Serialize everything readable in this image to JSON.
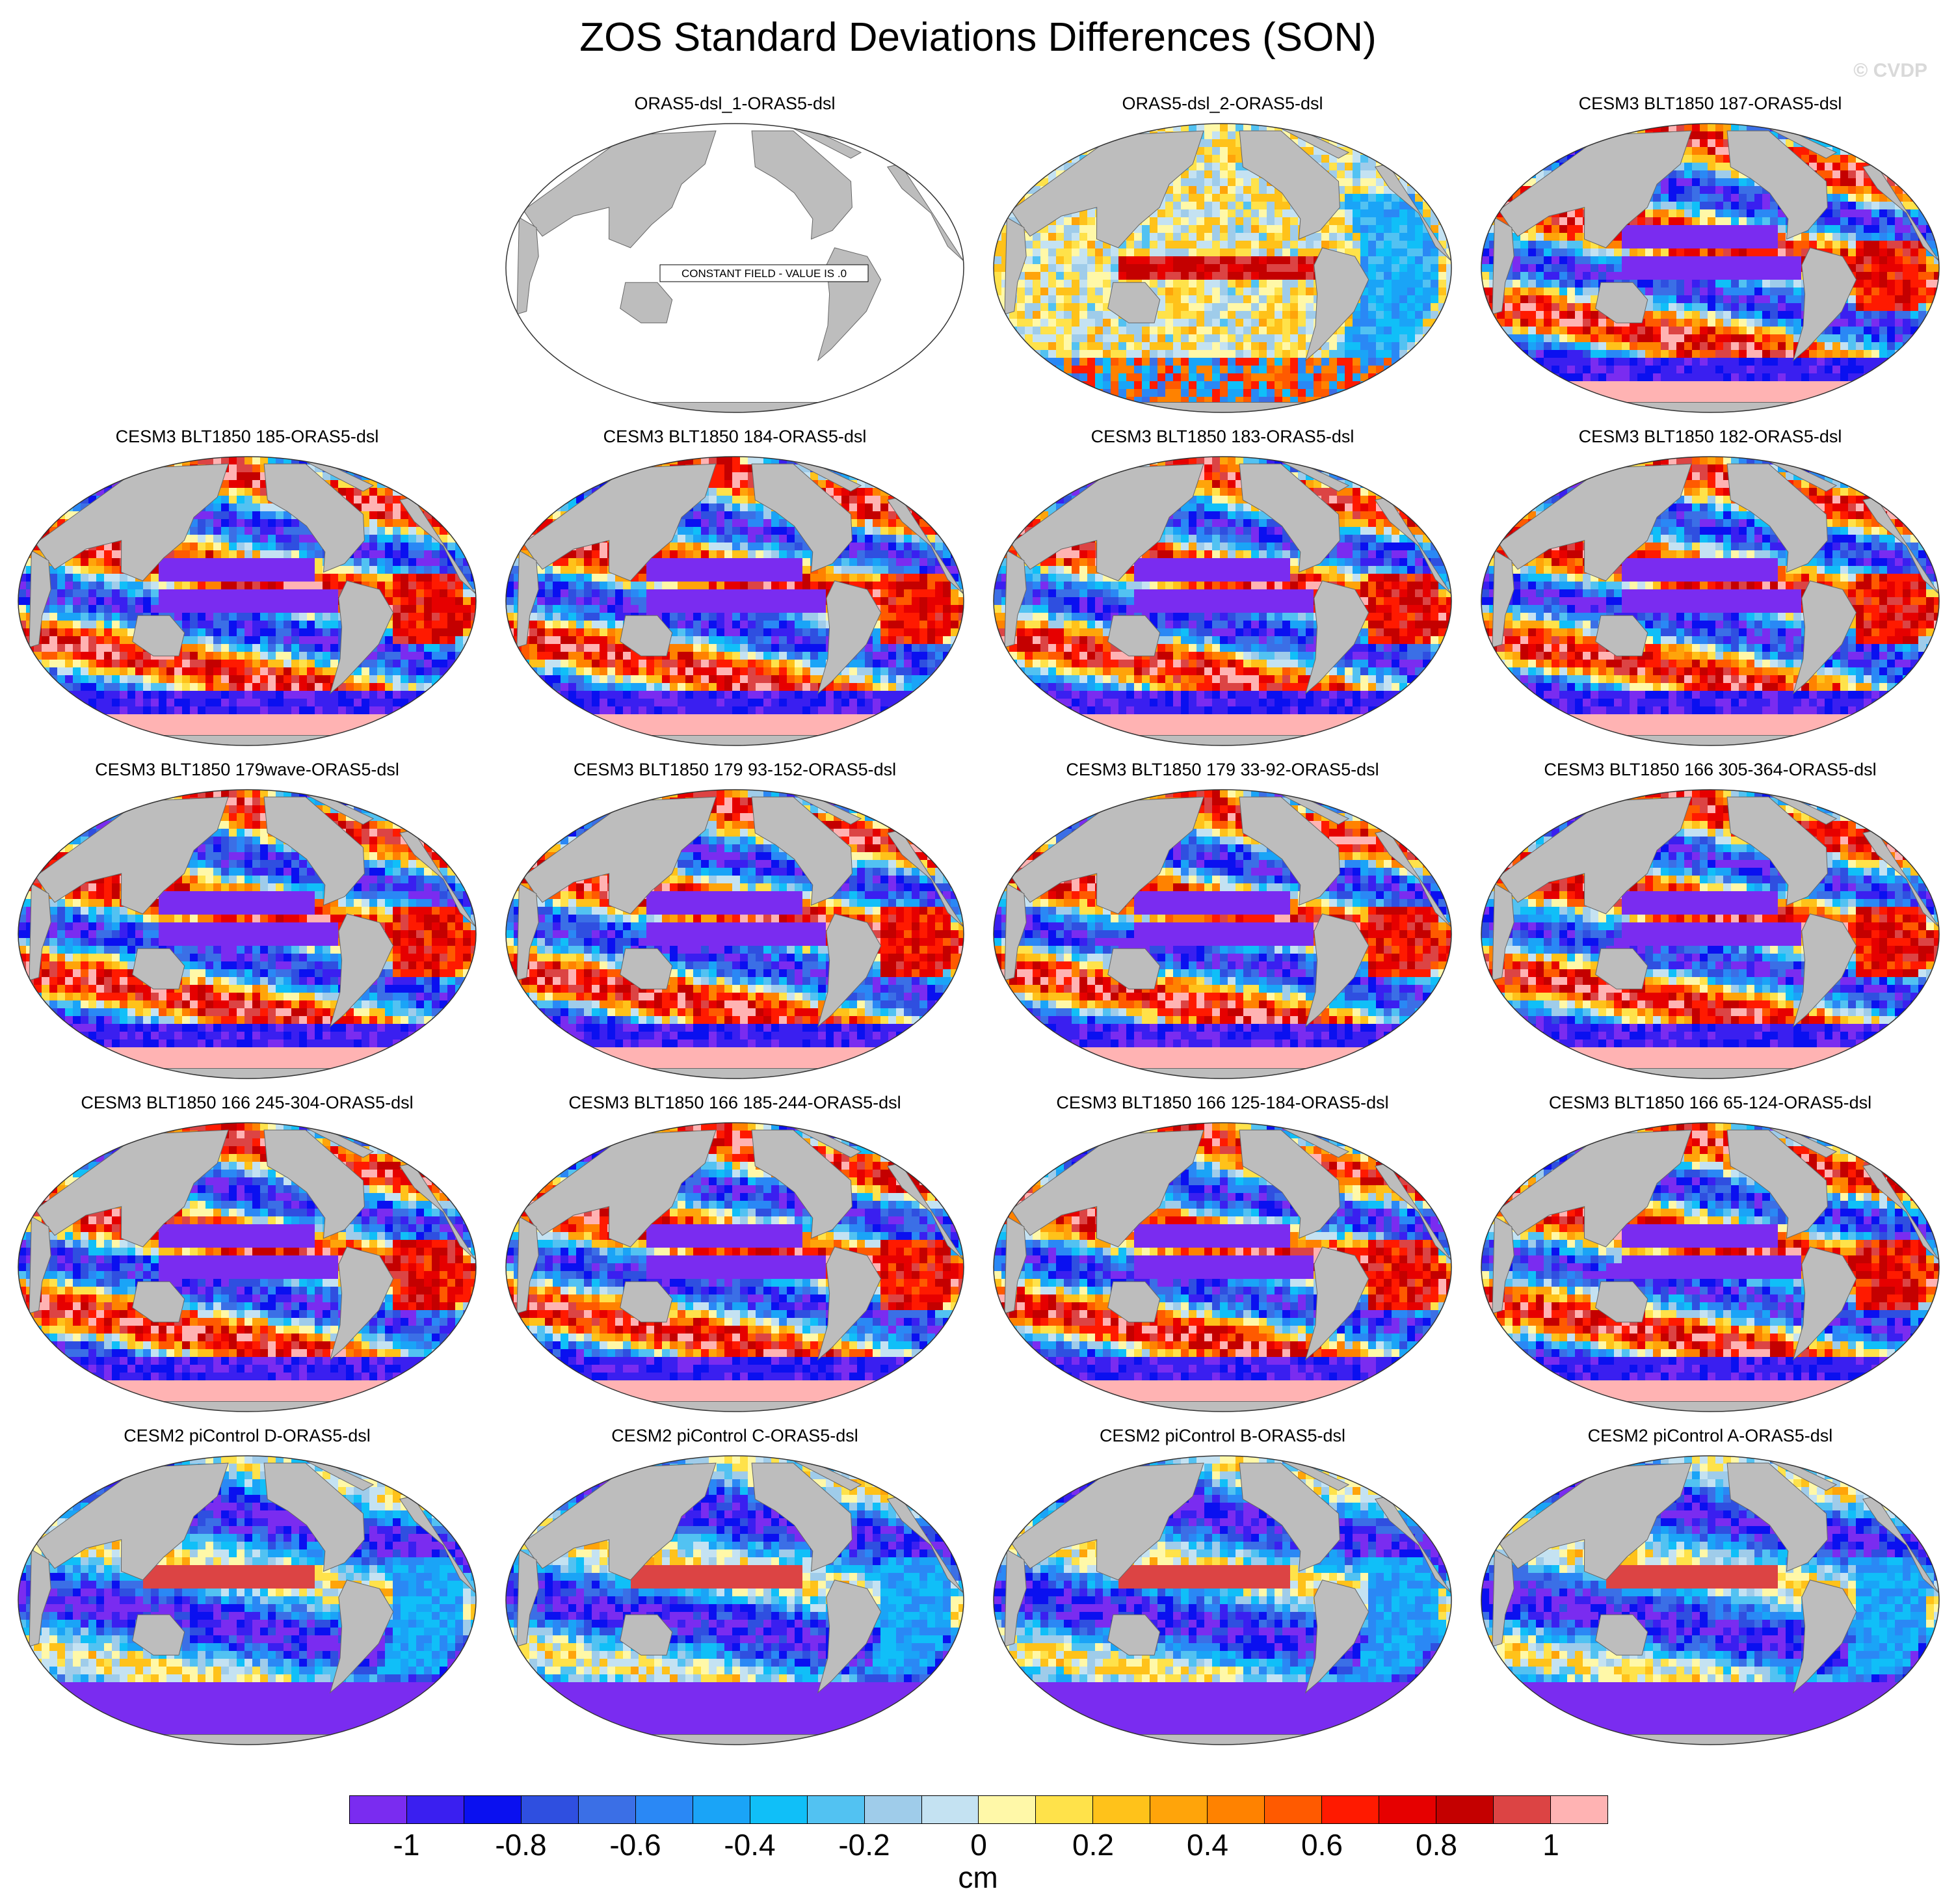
{
  "title": "ZOS Standard Deviations Differences (SON)",
  "watermark": "© CVDP",
  "constant_field_label": "CONSTANT FIELD - VALUE IS .0",
  "colors": {
    "land": "#bdbdbd",
    "ocean_border": "#333333",
    "constant_fill": "#ffffff"
  },
  "panels": [
    {
      "row": 0,
      "col": 1,
      "title": "ORAS5-dsl_1-ORAS5-dsl",
      "mode": "constant",
      "seed": 1
    },
    {
      "row": 0,
      "col": 2,
      "title": "ORAS5-dsl_2-ORAS5-dsl",
      "mode": "oras",
      "seed": 2
    },
    {
      "row": 0,
      "col": 3,
      "title": "CESM3 BLT1850 187-ORAS5-dsl",
      "mode": "cesm3",
      "seed": 3
    },
    {
      "row": 1,
      "col": 0,
      "title": "CESM3 BLT1850 185-ORAS5-dsl",
      "mode": "cesm3",
      "seed": 4
    },
    {
      "row": 1,
      "col": 1,
      "title": "CESM3 BLT1850 184-ORAS5-dsl",
      "mode": "cesm3",
      "seed": 5
    },
    {
      "row": 1,
      "col": 2,
      "title": "CESM3 BLT1850 183-ORAS5-dsl",
      "mode": "cesm3",
      "seed": 6
    },
    {
      "row": 1,
      "col": 3,
      "title": "CESM3 BLT1850 182-ORAS5-dsl",
      "mode": "cesm3",
      "seed": 7
    },
    {
      "row": 2,
      "col": 0,
      "title": "CESM3 BLT1850 179wave-ORAS5-dsl",
      "mode": "cesm3",
      "seed": 8
    },
    {
      "row": 2,
      "col": 1,
      "title": "CESM3 BLT1850 179 93-152-ORAS5-dsl",
      "mode": "cesm3",
      "seed": 9
    },
    {
      "row": 2,
      "col": 2,
      "title": "CESM3 BLT1850 179 33-92-ORAS5-dsl",
      "mode": "cesm3",
      "seed": 10
    },
    {
      "row": 2,
      "col": 3,
      "title": "CESM3 BLT1850 166 305-364-ORAS5-dsl",
      "mode": "cesm3",
      "seed": 11
    },
    {
      "row": 3,
      "col": 0,
      "title": "CESM3 BLT1850 166 245-304-ORAS5-dsl",
      "mode": "cesm3",
      "seed": 12
    },
    {
      "row": 3,
      "col": 1,
      "title": "CESM3 BLT1850 166 185-244-ORAS5-dsl",
      "mode": "cesm3",
      "seed": 13
    },
    {
      "row": 3,
      "col": 2,
      "title": "CESM3 BLT1850 166 125-184-ORAS5-dsl",
      "mode": "cesm3",
      "seed": 14
    },
    {
      "row": 3,
      "col": 3,
      "title": "CESM3 BLT1850 166 65-124-ORAS5-dsl",
      "mode": "cesm3",
      "seed": 15
    },
    {
      "row": 4,
      "col": 0,
      "title": "CESM2 piControl D-ORAS5-dsl",
      "mode": "cesm2",
      "seed": 16
    },
    {
      "row": 4,
      "col": 1,
      "title": "CESM2 piControl C-ORAS5-dsl",
      "mode": "cesm2",
      "seed": 17
    },
    {
      "row": 4,
      "col": 2,
      "title": "CESM2 piControl B-ORAS5-dsl",
      "mode": "cesm2",
      "seed": 18
    },
    {
      "row": 4,
      "col": 3,
      "title": "CESM2 piControl A-ORAS5-dsl",
      "mode": "cesm2",
      "seed": 19
    }
  ],
  "colorbar": {
    "unit": "cm",
    "colors": [
      "#7a2cf0",
      "#3a1ff0",
      "#0a10f0",
      "#2f4fe0",
      "#3b6fe6",
      "#2a88f5",
      "#1aa4f7",
      "#10bff8",
      "#52c2f2",
      "#9fccea",
      "#c4e2f2",
      "#fff8a8",
      "#ffe24a",
      "#ffc21a",
      "#ffa40a",
      "#ff8200",
      "#ff5a00",
      "#ff1a00",
      "#e60000",
      "#c40000",
      "#dc4444",
      "#ffb3b3"
    ],
    "tick_labels": [
      "-1",
      "-0.8",
      "-0.6",
      "-0.4",
      "-0.2",
      "0",
      "0.2",
      "0.4",
      "0.6",
      "0.8",
      "1"
    ]
  }
}
